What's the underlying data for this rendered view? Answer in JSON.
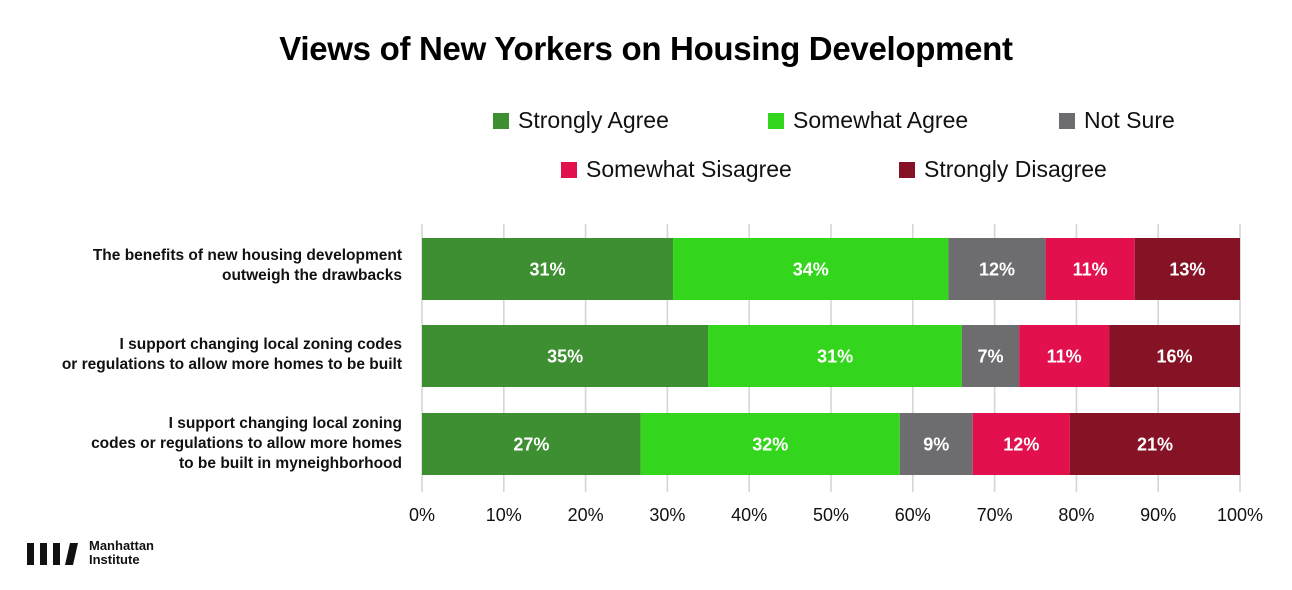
{
  "chart_data": {
    "type": "bar",
    "orientation": "horizontal",
    "stacked": true,
    "title": "Views of New Yorkers on Housing Development",
    "categories": [
      [
        "The benefits of new housing development",
        "outweigh the drawbacks"
      ],
      [
        "I support changing local zoning codes",
        "or regulations to allow more homes to be built"
      ],
      [
        "I support changing local zoning",
        "codes or regulations to allow more homes",
        "to be built in myneighborhood"
      ]
    ],
    "series": [
      {
        "name": "Strongly Agree",
        "color": "#3d8f31",
        "values": [
          31,
          35,
          27
        ],
        "labels": [
          "31%",
          "35%",
          "27%"
        ]
      },
      {
        "name": "Somewhat Agree",
        "color": "#33d61c",
        "values": [
          34,
          31,
          32
        ],
        "labels": [
          "34%",
          "31%",
          "32%"
        ]
      },
      {
        "name": "Not Sure",
        "color": "#6d6d6f",
        "values": [
          12,
          7,
          9
        ],
        "labels": [
          "12%",
          "7%",
          "9%"
        ]
      },
      {
        "name": "Somewhat Sisagree",
        "color": "#e2114e",
        "values": [
          11,
          11,
          12
        ],
        "labels": [
          "11%",
          "11%",
          "12%"
        ]
      },
      {
        "name": "Strongly Disagree",
        "color": "#861226",
        "values": [
          13,
          16,
          21
        ],
        "labels": [
          "13%",
          "16%",
          "21%"
        ]
      }
    ],
    "xlim": [
      0,
      100
    ],
    "x_ticks": [
      "0%",
      "10%",
      "20%",
      "30%",
      "40%",
      "50%",
      "60%",
      "70%",
      "80%",
      "90%",
      "100%"
    ],
    "grid": true,
    "legend_position": "top"
  },
  "footer": {
    "logo_line1": "Manhattan",
    "logo_line2": "Institute"
  }
}
